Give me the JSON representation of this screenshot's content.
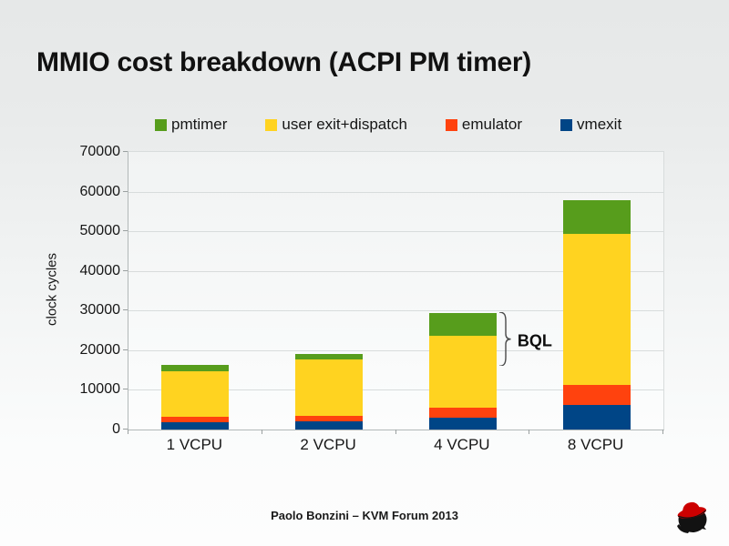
{
  "slide": {
    "title": "MMIO cost breakdown (ACPI PM timer)",
    "footer": "Paolo Bonzini – KVM Forum 2013",
    "logo": "redhat-shadowman-logo"
  },
  "chart_data": {
    "type": "bar",
    "stacked": true,
    "title": "MMIO cost breakdown (ACPI PM timer)",
    "xlabel": "",
    "ylabel": "clock cycles",
    "categories": [
      "1 VCPU",
      "2 VCPU",
      "4 VCPU",
      "8 VCPU"
    ],
    "series": [
      {
        "name": "vmexit",
        "color": "#004586",
        "values": [
          1900,
          2100,
          3000,
          6200
        ]
      },
      {
        "name": "emulator",
        "color": "#ff420e",
        "values": [
          1400,
          1300,
          2400,
          5000
        ]
      },
      {
        "name": "user exit+dispatch",
        "color": "#ffd320",
        "values": [
          11500,
          14200,
          18300,
          38200
        ]
      },
      {
        "name": "pmtimer",
        "color": "#579d1c",
        "values": [
          1500,
          1450,
          5700,
          8400
        ]
      }
    ],
    "totals": [
      16300,
      19050,
      29400,
      57800
    ],
    "legend_order": [
      "pmtimer",
      "user exit+dispatch",
      "emulator",
      "vmexit"
    ],
    "legend_position": "top",
    "ylim": [
      0,
      70000
    ],
    "yticks": [
      0,
      10000,
      20000,
      30000,
      40000,
      50000,
      60000,
      70000
    ],
    "grid": true,
    "annotation": {
      "text": "BQL",
      "category": "4 VCPU",
      "category_index": 2,
      "from_value": 29400,
      "to_value": 15800
    }
  }
}
